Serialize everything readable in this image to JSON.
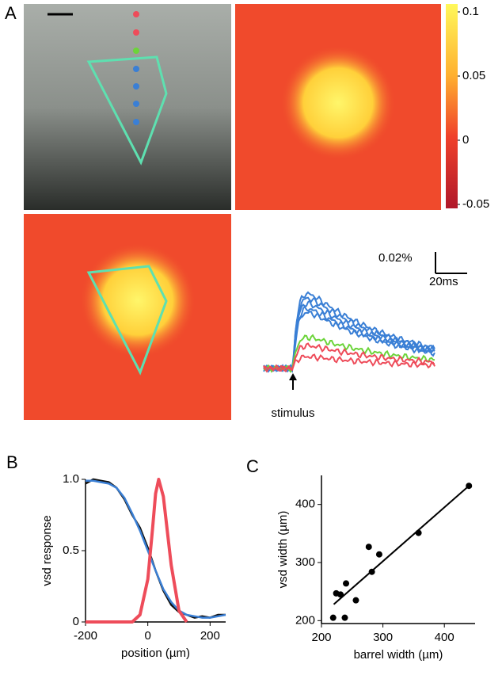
{
  "panel_a": {
    "label": "A",
    "colorbar_ticks": [
      0.1,
      0.05,
      0,
      -0.05
    ],
    "scale_y": "0.02%",
    "scale_x": "20ms",
    "stimulus": "stimulus"
  },
  "chart_data": [
    {
      "type": "line",
      "panel": "B",
      "ylabel": "vsd response",
      "xlabel": "position (µm)",
      "xlim": [
        -200,
        250
      ],
      "ylim": [
        0,
        1
      ],
      "xticks": [
        -200,
        0,
        200
      ],
      "yticks": [
        0,
        0.5,
        {
          "value": 1,
          "label": "1.0"
        }
      ],
      "series": [
        {
          "color": "#111111",
          "x": [
            -200,
            -175,
            -150,
            -125,
            -100,
            -75,
            -50,
            -25,
            0,
            25,
            50,
            75,
            100,
            125,
            150,
            175,
            200,
            225,
            250
          ],
          "values": [
            0.97,
            1,
            0.99,
            0.98,
            0.94,
            0.86,
            0.75,
            0.66,
            0.52,
            0.36,
            0.22,
            0.12,
            0.07,
            0.05,
            0.03,
            0.04,
            0.03,
            0.05,
            0.05
          ]
        },
        {
          "color": "#3a7fd5",
          "x": [
            -200,
            -175,
            -150,
            -125,
            -100,
            -75,
            -50,
            -25,
            0,
            25,
            50,
            75,
            100,
            125,
            150,
            175,
            200,
            225,
            250
          ],
          "values": [
            0.99,
            0.99,
            0.98,
            0.97,
            0.94,
            0.87,
            0.76,
            0.64,
            0.5,
            0.36,
            0.23,
            0.14,
            0.08,
            0.05,
            0.04,
            0.03,
            0.03,
            0.04,
            0.05
          ]
        },
        {
          "color": "#ee4c5a",
          "x": [
            -200,
            -50,
            -25,
            0,
            15,
            25,
            35,
            50,
            75,
            100,
            125
          ],
          "values": [
            0,
            0,
            0.05,
            0.3,
            0.65,
            0.9,
            1,
            0.88,
            0.4,
            0.08,
            0
          ]
        }
      ]
    },
    {
      "type": "scatter",
      "panel": "C",
      "ylabel": "vsd width (µm)",
      "xlabel": "barrel width (µm)",
      "xlim": [
        200,
        450
      ],
      "ylim": [
        195,
        450
      ],
      "xticks": [
        200,
        300,
        400
      ],
      "yticks": [
        200,
        300,
        400
      ],
      "points": {
        "color": "#000000",
        "x": [
          219,
          224,
          231,
          240,
          238,
          256,
          277,
          282,
          294,
          358,
          440
        ],
        "values": [
          205,
          247,
          245,
          264,
          205,
          235,
          327,
          284,
          314,
          351,
          432
        ]
      },
      "fit": {
        "color": "#000000",
        "x": [
          220,
          440
        ],
        "values": [
          228,
          432
        ]
      }
    }
  ]
}
